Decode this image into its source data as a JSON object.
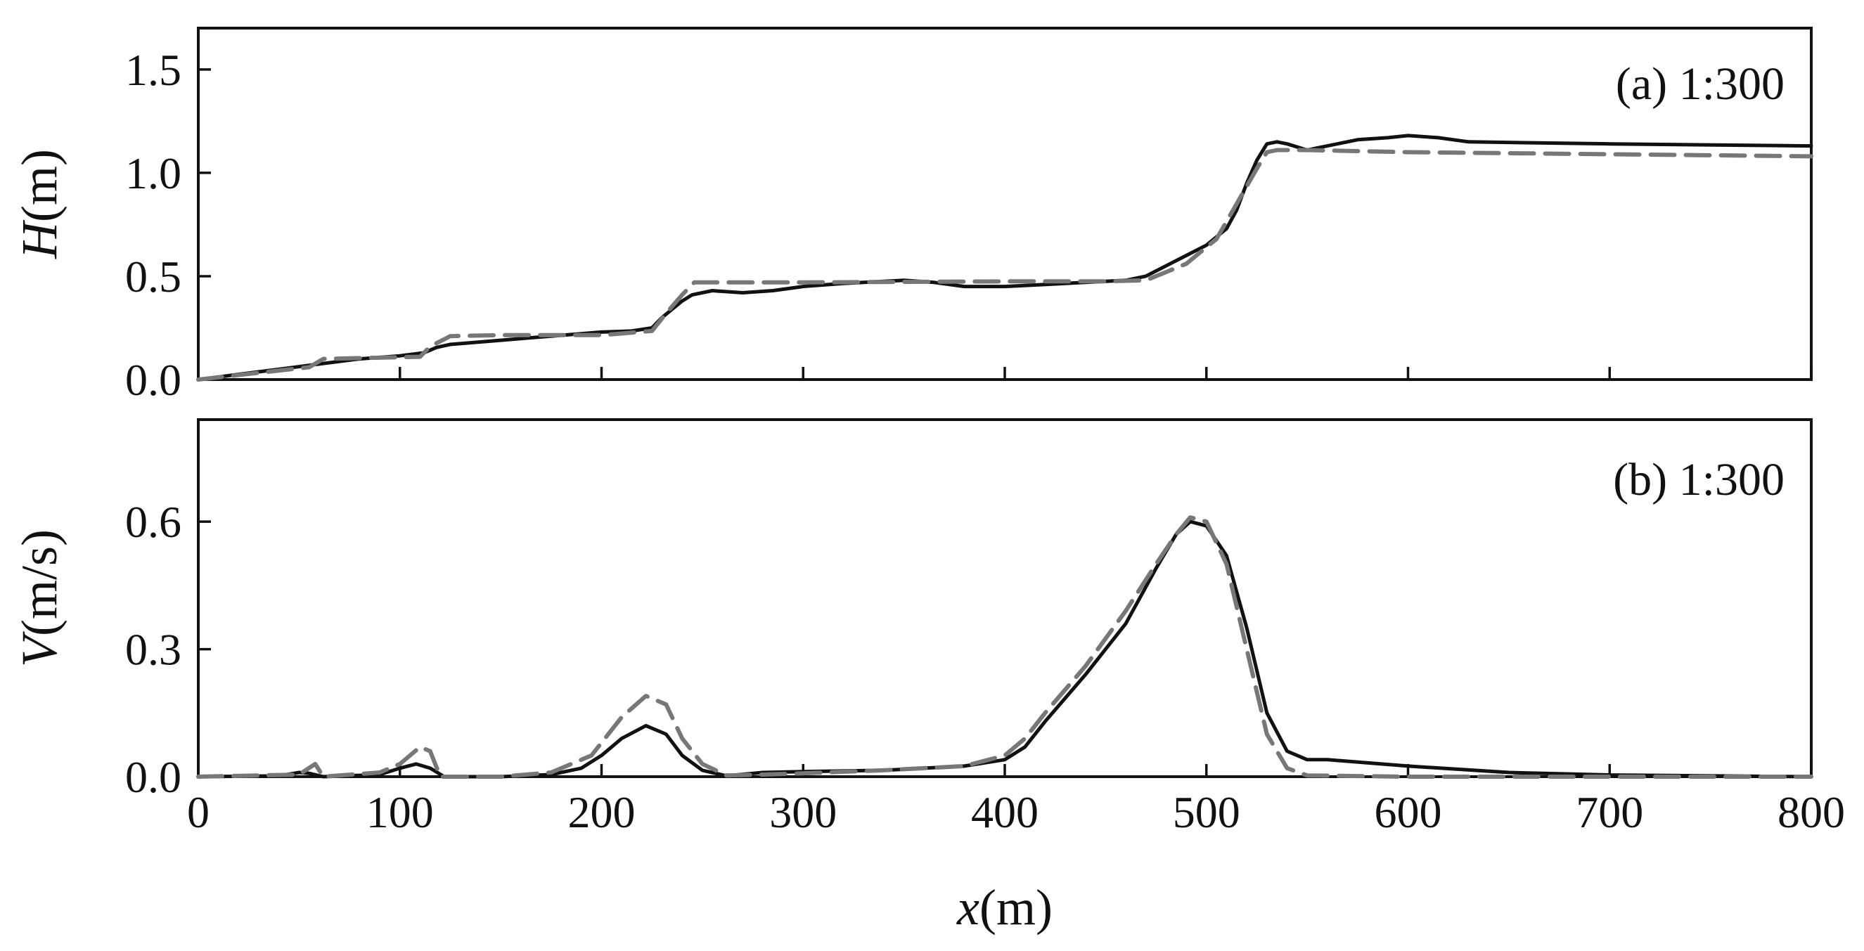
{
  "chart_data": [
    {
      "type": "line",
      "panel_label": "(a) 1:300",
      "xlabel": "x(m)",
      "ylabel": "H(m)",
      "xlim": [
        0,
        800
      ],
      "ylim": [
        0,
        1.7
      ],
      "xticks": [
        0,
        100,
        200,
        300,
        400,
        500,
        600,
        700,
        800
      ],
      "yticks": [
        0.0,
        0.5,
        1.0,
        1.5
      ],
      "ytick_labels": [
        "0.0",
        "0.5",
        "1.0",
        "1.5"
      ],
      "grid": false,
      "series": [
        {
          "style": "solid",
          "color": "#111111",
          "x": [
            0,
            20,
            40,
            60,
            80,
            100,
            112,
            118,
            125,
            150,
            175,
            200,
            215,
            225,
            230,
            235,
            240,
            245,
            255,
            270,
            285,
            300,
            320,
            350,
            365,
            380,
            400,
            420,
            440,
            460,
            470,
            480,
            490,
            500,
            510,
            515,
            520,
            525,
            530,
            535,
            540,
            550,
            560,
            575,
            590,
            600,
            615,
            630,
            700,
            800
          ],
          "y": [
            0.0,
            0.025,
            0.05,
            0.075,
            0.1,
            0.115,
            0.13,
            0.155,
            0.17,
            0.19,
            0.21,
            0.23,
            0.235,
            0.25,
            0.3,
            0.34,
            0.38,
            0.41,
            0.43,
            0.42,
            0.43,
            0.45,
            0.465,
            0.48,
            0.47,
            0.45,
            0.45,
            0.46,
            0.47,
            0.48,
            0.5,
            0.55,
            0.6,
            0.65,
            0.73,
            0.82,
            0.95,
            1.06,
            1.14,
            1.15,
            1.14,
            1.11,
            1.13,
            1.16,
            1.17,
            1.18,
            1.17,
            1.15,
            1.14,
            1.13
          ]
        },
        {
          "style": "dashed",
          "color": "#777777",
          "x": [
            0,
            55,
            62,
            110,
            115,
            125,
            150,
            175,
            200,
            225,
            232,
            240,
            246,
            300,
            400,
            450,
            470,
            490,
            505,
            515,
            525,
            530,
            535,
            550,
            600,
            700,
            800
          ],
          "y": [
            0.0,
            0.06,
            0.1,
            0.11,
            0.16,
            0.21,
            0.215,
            0.215,
            0.215,
            0.235,
            0.32,
            0.41,
            0.47,
            0.47,
            0.475,
            0.475,
            0.48,
            0.56,
            0.68,
            0.85,
            1.02,
            1.1,
            1.11,
            1.11,
            1.1,
            1.09,
            1.08
          ]
        }
      ]
    },
    {
      "type": "line",
      "panel_label": "(b) 1:300",
      "xlabel": "x(m)",
      "ylabel": "V(m/s)",
      "xlim": [
        0,
        800
      ],
      "ylim": [
        0,
        0.84
      ],
      "xticks": [
        0,
        100,
        200,
        300,
        400,
        500,
        600,
        700,
        800
      ],
      "xtick_labels": [
        "0",
        "100",
        "200",
        "300",
        "400",
        "500",
        "600",
        "700",
        "800"
      ],
      "yticks": [
        0.0,
        0.3,
        0.6
      ],
      "ytick_labels": [
        "0.0",
        "0.3",
        "0.6"
      ],
      "grid": false,
      "series": [
        {
          "style": "solid",
          "color": "#111111",
          "x": [
            0,
            40,
            50,
            55,
            62,
            90,
            100,
            108,
            115,
            122,
            150,
            175,
            190,
            200,
            210,
            222,
            232,
            240,
            250,
            262,
            280,
            300,
            340,
            380,
            400,
            410,
            420,
            440,
            460,
            475,
            485,
            492,
            500,
            510,
            520,
            530,
            540,
            550,
            560,
            600,
            650,
            700,
            800
          ],
          "y": [
            0.0,
            0.002,
            0.01,
            0.008,
            0.0,
            0.005,
            0.02,
            0.03,
            0.02,
            0.0,
            0.0,
            0.005,
            0.02,
            0.05,
            0.09,
            0.12,
            0.1,
            0.05,
            0.015,
            0.002,
            0.01,
            0.012,
            0.015,
            0.025,
            0.04,
            0.07,
            0.13,
            0.24,
            0.36,
            0.49,
            0.57,
            0.6,
            0.59,
            0.52,
            0.35,
            0.15,
            0.06,
            0.04,
            0.04,
            0.025,
            0.01,
            0.004,
            0.0
          ]
        },
        {
          "style": "dashed",
          "color": "#777777",
          "x": [
            0,
            50,
            58,
            62,
            90,
            100,
            110,
            115,
            120,
            150,
            175,
            195,
            210,
            222,
            232,
            240,
            250,
            262,
            280,
            300,
            340,
            380,
            400,
            410,
            420,
            440,
            460,
            475,
            485,
            492,
            500,
            510,
            520,
            530,
            540,
            550,
            600,
            700,
            800
          ],
          "y": [
            0.0,
            0.005,
            0.03,
            0.0,
            0.01,
            0.03,
            0.07,
            0.06,
            0.0,
            0.0,
            0.01,
            0.05,
            0.14,
            0.19,
            0.17,
            0.09,
            0.03,
            0.003,
            0.005,
            0.008,
            0.015,
            0.025,
            0.05,
            0.09,
            0.15,
            0.26,
            0.39,
            0.5,
            0.57,
            0.61,
            0.6,
            0.5,
            0.3,
            0.1,
            0.02,
            0.003,
            0.0,
            0.0,
            0.0
          ]
        }
      ]
    }
  ]
}
